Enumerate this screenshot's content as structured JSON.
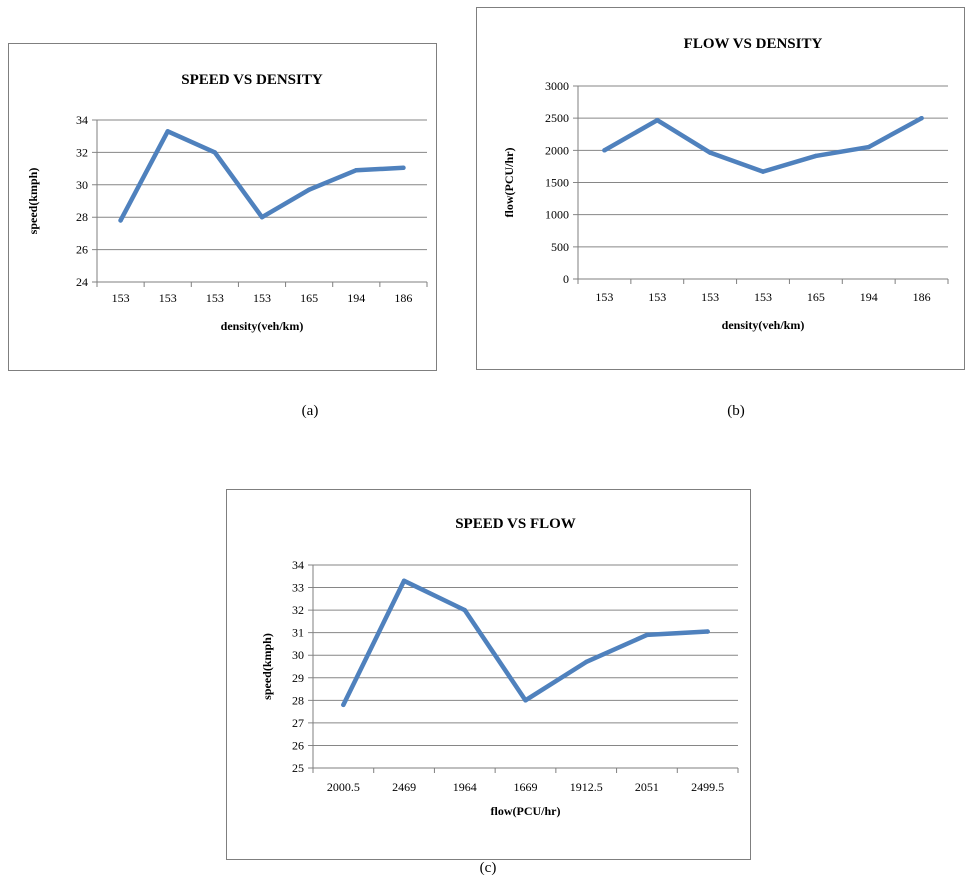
{
  "chart_data": [
    {
      "type": "line",
      "title": "SPEED VS DENSITY",
      "xlabel": "density(veh/km)",
      "ylabel": "speed(kmph)",
      "categories": [
        "153",
        "153",
        "153",
        "153",
        "165",
        "194",
        "186"
      ],
      "values": [
        27.8,
        33.3,
        32.0,
        28.0,
        29.7,
        30.9,
        31.05
      ],
      "ylim": [
        24,
        34
      ],
      "ytick_step": 2,
      "grid": true,
      "color": "#4f81bd",
      "caption": "(a)"
    },
    {
      "type": "line",
      "title": "FLOW VS DENSITY",
      "xlabel": "density(veh/km)",
      "ylabel": "flow(PCU/hr)",
      "categories": [
        "153",
        "153",
        "153",
        "153",
        "165",
        "194",
        "186"
      ],
      "values": [
        2000.5,
        2469,
        1964,
        1669,
        1912.5,
        2051,
        2499.5
      ],
      "ylim": [
        0,
        3000
      ],
      "ytick_step": 500,
      "grid": true,
      "color": "#4f81bd",
      "caption": "(b)"
    },
    {
      "type": "line",
      "title": "SPEED VS FLOW",
      "xlabel": "flow(PCU/hr)",
      "ylabel": "speed(kmph)",
      "categories": [
        "2000.5",
        "2469",
        "1964",
        "1669",
        "1912.5",
        "2051",
        "2499.5"
      ],
      "values": [
        27.8,
        33.3,
        32.0,
        28.0,
        29.7,
        30.9,
        31.05
      ],
      "ylim": [
        25,
        34
      ],
      "ytick_step": 1,
      "grid": true,
      "color": "#4f81bd",
      "caption": "(c)"
    }
  ]
}
